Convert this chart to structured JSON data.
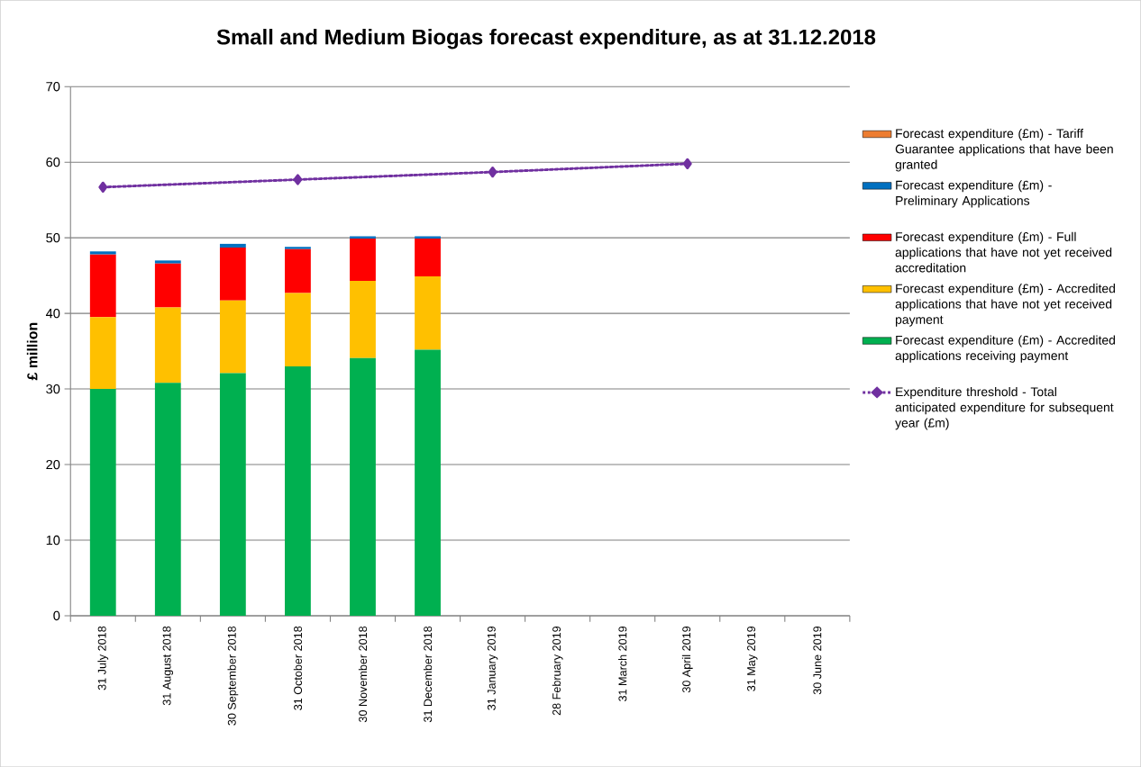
{
  "chart_data": {
    "type": "bar",
    "title": "Small and Medium Biogas forecast expenditure, as at 31.12.2018",
    "ylabel": "£ million",
    "categories": [
      "31 July 2018",
      "31 August 2018",
      "30 September 2018",
      "31 October 2018",
      "30 November 2018",
      "31 December 2018",
      "31 January 2019",
      "28 February 2019",
      "31 March 2019",
      "30 April 2019",
      "31 May 2019",
      "30 June 2019"
    ],
    "stacked": true,
    "grid": "y",
    "legend": "right",
    "ylim": [
      0,
      70
    ],
    "yticks": [
      0,
      10,
      20,
      30,
      40,
      50,
      60,
      70
    ],
    "series": [
      {
        "name": "Forecast expenditure (£m) - Accredited applications receiving payment",
        "color": "#00b050",
        "values": [
          30.0,
          30.8,
          32.1,
          33.0,
          34.1,
          35.2,
          null,
          null,
          null,
          null,
          null,
          null
        ]
      },
      {
        "name": "Forecast expenditure (£m) - Accredited applications that have not yet received payment",
        "color": "#ffc000",
        "values": [
          9.5,
          10.0,
          9.6,
          9.7,
          10.2,
          9.7,
          null,
          null,
          null,
          null,
          null,
          null
        ]
      },
      {
        "name": "Forecast expenditure (£m) - Full applications that have not yet received accreditation",
        "color": "#ff0000",
        "values": [
          8.3,
          5.8,
          7.0,
          5.8,
          5.6,
          5.0,
          null,
          null,
          null,
          null,
          null,
          null
        ]
      },
      {
        "name": "Forecast expenditure (£m) - Preliminary Applications",
        "color": "#0070c0",
        "values": [
          0.4,
          0.4,
          0.5,
          0.3,
          0.3,
          0.3,
          null,
          null,
          null,
          null,
          null,
          null
        ]
      },
      {
        "name": "Forecast expenditure (£m) - Tariff Guarantee applications that have been granted",
        "color": "#ed7d31",
        "values": [
          0,
          0,
          0,
          0,
          0,
          0,
          null,
          null,
          null,
          null,
          null,
          null
        ]
      },
      {
        "name": "Expenditure threshold - Total anticipated expenditure for subsequent year (£m)",
        "type": "line",
        "color": "#7030a0",
        "marker": "diamond",
        "line_style": "dotted",
        "values": [
          56.7,
          null,
          null,
          57.7,
          null,
          null,
          58.7,
          null,
          null,
          59.8,
          null,
          null
        ]
      }
    ]
  }
}
